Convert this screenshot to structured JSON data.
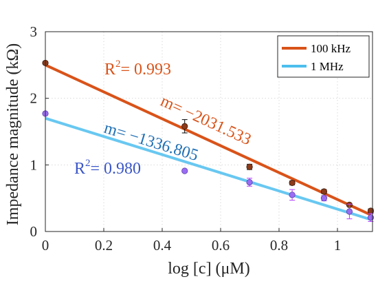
{
  "chart_data": {
    "type": "scatter",
    "xlabel": "log [c] (μM)",
    "ylabel": "Impedance magnitude (kΩ)",
    "xlim": [
      0,
      1.12
    ],
    "ylim": [
      0,
      3
    ],
    "x_ticks": [
      "0",
      "0.2",
      "0.4",
      "0.6",
      "0.8",
      "1"
    ],
    "y_ticks": [
      "0",
      "1",
      "2",
      "3"
    ],
    "grid": true,
    "legend_position": "top-right",
    "series": [
      {
        "name": "100 kHz",
        "color": "#d95319",
        "marker_color": "#8b3a1a",
        "x": [
          0,
          0.477,
          0.699,
          0.845,
          0.954,
          1.041,
          1.114
        ],
        "y": [
          2.53,
          1.58,
          0.97,
          0.73,
          0.6,
          0.4,
          0.31
        ],
        "error": [
          0.02,
          0.1,
          0.04,
          0.03,
          0.03,
          0.02,
          0.03
        ],
        "fit": {
          "slope_label": "m= −2031.533",
          "r2_label": "= 0.993",
          "x": [
            0,
            1.114
          ],
          "y": [
            2.5,
            0.25
          ]
        }
      },
      {
        "name": "1 MHz",
        "color": "#4dbeee",
        "marker_color": "#9b6cf2",
        "x": [
          0,
          0.477,
          0.699,
          0.845,
          0.954,
          1.041,
          1.114
        ],
        "y": [
          1.77,
          0.91,
          0.74,
          0.55,
          0.5,
          0.3,
          0.21
        ],
        "error": [
          0.02,
          0.02,
          0.06,
          0.08,
          0.04,
          0.11,
          0.06
        ],
        "fit": {
          "slope_label": "m= −1336.805",
          "r2_label": "= 0.980",
          "x": [
            0,
            1.114
          ],
          "y": [
            1.7,
            0.18
          ]
        }
      }
    ]
  }
}
